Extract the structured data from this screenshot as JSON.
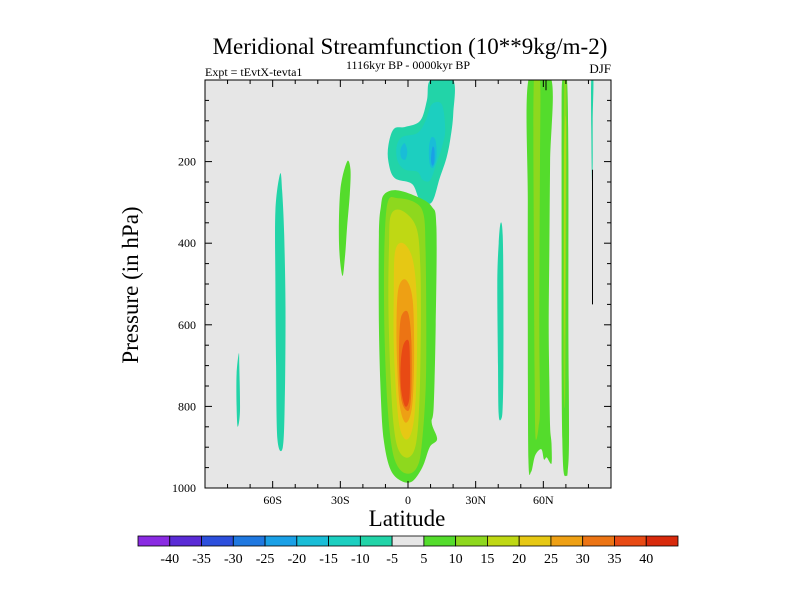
{
  "chart_data": {
    "type": "contour",
    "title": "Meridional Streamfunction (10**9kg/m-2)",
    "subtitle_left": "Expt = tEvtX-tevta1",
    "subtitle_center": "1116kyr BP - 0000kyr BP",
    "subtitle_right": "DJF",
    "xlabel": "Latitude",
    "ylabel": "Pressure (in hPa)",
    "xlim": [
      -90,
      90
    ],
    "ylim": [
      1000,
      0
    ],
    "x_ticks": [
      {
        "value": -60,
        "label": "60S"
      },
      {
        "value": -30,
        "label": "30S"
      },
      {
        "value": 0,
        "label": "0"
      },
      {
        "value": 30,
        "label": "30N"
      },
      {
        "value": 60,
        "label": "60N"
      }
    ],
    "y_ticks": [
      {
        "value": 200,
        "label": "200"
      },
      {
        "value": 400,
        "label": "400"
      },
      {
        "value": 600,
        "label": "600"
      },
      {
        "value": 800,
        "label": "800"
      },
      {
        "value": 1000,
        "label": "1000"
      }
    ],
    "background_color": "#e6e6e6",
    "colorbar": {
      "levels": [
        -40,
        -35,
        -30,
        -25,
        -20,
        -15,
        -10,
        -5,
        5,
        10,
        15,
        20,
        25,
        30,
        35,
        40
      ],
      "colors": [
        "#8a2be2",
        "#5a2bd6",
        "#2c4fdc",
        "#1f78e0",
        "#1aa0e6",
        "#19bdd7",
        "#1ccfc0",
        "#22d4a8",
        "#e6e6e6",
        "#54dc2c",
        "#8ed81e",
        "#bfd814",
        "#e6c814",
        "#eea014",
        "#ec7414",
        "#e84a14",
        "#d82a0c"
      ]
    },
    "regions": [
      {
        "name": "antarctic-negative-strip",
        "level": -5,
        "outline": [
          [
            -75,
            670
          ],
          [
            -76,
            720
          ],
          [
            -76,
            800
          ],
          [
            -75.5,
            850
          ],
          [
            -74.5,
            810
          ],
          [
            -74.8,
            700
          ]
        ]
      },
      {
        "name": "southern-negative-cell",
        "level": -5,
        "outline": [
          [
            -56.7,
            230
          ],
          [
            -58.8,
            320
          ],
          [
            -58.8,
            500
          ],
          [
            -58.5,
            700
          ],
          [
            -57.9,
            880
          ],
          [
            -55.5,
            900
          ],
          [
            -54.6,
            780
          ],
          [
            -54.3,
            560
          ],
          [
            -54.9,
            380
          ],
          [
            -55.8,
            270
          ]
        ]
      },
      {
        "name": "southern-positive-cell",
        "level": 5,
        "outline": [
          [
            -27,
            200
          ],
          [
            -30,
            270
          ],
          [
            -30.6,
            400
          ],
          [
            -29.1,
            480
          ],
          [
            -27.9,
            430
          ],
          [
            -27,
            360
          ],
          [
            -25.8,
            280
          ],
          [
            -25.5,
            220
          ]
        ]
      },
      {
        "name": "upper-negative-cell-outer",
        "level": -5,
        "outline": [
          [
            10,
            0
          ],
          [
            20,
            0
          ],
          [
            20.1,
            80
          ],
          [
            18.9,
            140
          ],
          [
            17.1,
            190
          ],
          [
            14.1,
            240
          ],
          [
            10.5,
            300
          ],
          [
            5.4,
            295
          ],
          [
            1.8,
            255
          ],
          [
            -6,
            240
          ],
          [
            -8.7,
            200
          ],
          [
            -8.7,
            160
          ],
          [
            -6.3,
            120
          ],
          [
            -1.2,
            115
          ],
          [
            5.4,
            100
          ],
          [
            8.4,
            50
          ]
        ]
      },
      {
        "name": "upper-negative-cell-mid",
        "level": -10,
        "outline": [
          [
            10.5,
            60
          ],
          [
            15,
            60
          ],
          [
            16.5,
            120
          ],
          [
            15.3,
            160
          ],
          [
            12.9,
            200
          ],
          [
            9.9,
            245
          ],
          [
            6.6,
            245
          ],
          [
            4.2,
            225
          ],
          [
            -1.2,
            220
          ],
          [
            -4.5,
            200
          ],
          [
            -5.1,
            165
          ],
          [
            -2.7,
            140
          ],
          [
            4.2,
            130
          ],
          [
            7.8,
            100
          ]
        ]
      },
      {
        "name": "upper-negative-cell-core",
        "level": -15,
        "outline": [
          [
            -3.3,
            170
          ],
          [
            -1.5,
            155
          ],
          [
            -0.3,
            175
          ],
          [
            -1.2,
            195
          ],
          [
            -3,
            190
          ]
        ]
      },
      {
        "name": "upper-negative-cell-core-2",
        "level": -15,
        "outline": [
          [
            10.5,
            140
          ],
          [
            12.3,
            150
          ],
          [
            12.6,
            190
          ],
          [
            11.1,
            215
          ],
          [
            9.6,
            205
          ],
          [
            9.3,
            165
          ]
        ]
      },
      {
        "name": "upper-negative-cell-core-3",
        "level": -20,
        "outline": [
          [
            10.8,
            165
          ],
          [
            11.7,
            170
          ],
          [
            11.7,
            200
          ],
          [
            10.8,
            210
          ],
          [
            10.2,
            195
          ]
        ]
      },
      {
        "name": "hadley-positive-cell-5",
        "level": 5,
        "outline": [
          [
            -10.5,
            280
          ],
          [
            -5.1,
            270
          ],
          [
            3.6,
            285
          ],
          [
            10.5,
            310
          ],
          [
            12.6,
            360
          ],
          [
            12.3,
            600
          ],
          [
            11.4,
            800
          ],
          [
            10.5,
            840
          ],
          [
            12.9,
            880
          ],
          [
            9.6,
            900
          ],
          [
            6.3,
            950
          ],
          [
            1.5,
            985
          ],
          [
            -3.9,
            980
          ],
          [
            -8.1,
            950
          ],
          [
            -10.8,
            880
          ],
          [
            -12,
            780
          ],
          [
            -12.9,
            600
          ],
          [
            -12.9,
            380
          ],
          [
            -12,
            310
          ]
        ]
      },
      {
        "name": "hadley-positive-cell-10",
        "level": 10,
        "outline": [
          [
            -9,
            300
          ],
          [
            -4.5,
            290
          ],
          [
            3,
            300
          ],
          [
            6.9,
            330
          ],
          [
            7.8,
            420
          ],
          [
            8.1,
            600
          ],
          [
            7.8,
            760
          ],
          [
            6,
            900
          ],
          [
            3.9,
            950
          ],
          [
            0,
            965
          ],
          [
            -4.2,
            950
          ],
          [
            -7.2,
            900
          ],
          [
            -9.3,
            780
          ],
          [
            -10.5,
            600
          ],
          [
            -10.5,
            420
          ]
        ]
      },
      {
        "name": "hadley-positive-cell-15",
        "level": 15,
        "outline": [
          [
            -7.5,
            330
          ],
          [
            -2.7,
            320
          ],
          [
            3.6,
            360
          ],
          [
            5.4,
            450
          ],
          [
            5.7,
            600
          ],
          [
            5.1,
            780
          ],
          [
            3.6,
            890
          ],
          [
            0.3,
            925
          ],
          [
            -3.9,
            910
          ],
          [
            -6.3,
            850
          ],
          [
            -7.8,
            720
          ],
          [
            -8.7,
            550
          ],
          [
            -8.4,
            400
          ]
        ]
      },
      {
        "name": "hadley-positive-cell-20",
        "level": 20,
        "outline": [
          [
            -5.7,
            420
          ],
          [
            -2.1,
            400
          ],
          [
            2.1,
            440
          ],
          [
            3.9,
            540
          ],
          [
            3.9,
            700
          ],
          [
            2.7,
            830
          ],
          [
            0,
            880
          ],
          [
            -3.3,
            860
          ],
          [
            -5.1,
            780
          ],
          [
            -6.3,
            650
          ],
          [
            -6.3,
            520
          ]
        ]
      },
      {
        "name": "hadley-positive-cell-25",
        "level": 25,
        "outline": [
          [
            -4.2,
            510
          ],
          [
            -0.9,
            490
          ],
          [
            2.1,
            540
          ],
          [
            2.7,
            680
          ],
          [
            1.8,
            800
          ],
          [
            -0.9,
            840
          ],
          [
            -3.6,
            800
          ],
          [
            -4.8,
            700
          ],
          [
            -5.1,
            600
          ]
        ]
      },
      {
        "name": "hadley-positive-cell-30",
        "level": 30,
        "outline": [
          [
            -3,
            580
          ],
          [
            0,
            570
          ],
          [
            1.5,
            640
          ],
          [
            1.5,
            760
          ],
          [
            0.3,
            810
          ],
          [
            -2.7,
            790
          ],
          [
            -3.9,
            720
          ],
          [
            -3.9,
            640
          ]
        ]
      },
      {
        "name": "hadley-positive-cell-35",
        "level": 35,
        "outline": [
          [
            -2.1,
            650
          ],
          [
            0.3,
            640
          ],
          [
            0.9,
            700
          ],
          [
            0.6,
            780
          ],
          [
            -1.2,
            800
          ],
          [
            -3,
            760
          ],
          [
            -3.3,
            700
          ]
        ]
      },
      {
        "name": "northern-negative-cell",
        "level": -5,
        "outline": [
          [
            41.1,
            350
          ],
          [
            42,
            380
          ],
          [
            42.3,
            520
          ],
          [
            42.3,
            700
          ],
          [
            42,
            800
          ],
          [
            41.4,
            830
          ],
          [
            40.2,
            820
          ],
          [
            39.9,
            700
          ],
          [
            39.6,
            500
          ],
          [
            40.2,
            400
          ]
        ]
      },
      {
        "name": "midlat-positive-strip-outer",
        "level": 5,
        "outline": [
          [
            53.4,
            0
          ],
          [
            63.6,
            0
          ],
          [
            63,
            200
          ],
          [
            62.7,
            400
          ],
          [
            62.4,
            600
          ],
          [
            62.7,
            750
          ],
          [
            63,
            850
          ],
          [
            63.6,
            890
          ],
          [
            63.6,
            940
          ],
          [
            61.5,
            925
          ],
          [
            60.3,
            930
          ],
          [
            59.1,
            905
          ],
          [
            56.4,
            920
          ],
          [
            54.6,
            960
          ],
          [
            53.4,
            930
          ],
          [
            53.1,
            600
          ],
          [
            53.1,
            300
          ]
        ]
      },
      {
        "name": "midlat-positive-strip-inner",
        "level": 10,
        "outline": [
          [
            55.8,
            0
          ],
          [
            58.5,
            0
          ],
          [
            58.5,
            200
          ],
          [
            58.2,
            600
          ],
          [
            58.5,
            800
          ],
          [
            57.9,
            850
          ],
          [
            57,
            880
          ],
          [
            56.4,
            860
          ],
          [
            56.1,
            700
          ],
          [
            55.8,
            400
          ]
        ]
      },
      {
        "name": "polar-positive-strip",
        "level": 5,
        "outline": [
          [
            68.4,
            0
          ],
          [
            70.5,
            0
          ],
          [
            71.1,
            200
          ],
          [
            71.1,
            600
          ],
          [
            71.4,
            880
          ],
          [
            70.8,
            960
          ],
          [
            70.2,
            970
          ],
          [
            69,
            960
          ],
          [
            68.4,
            880
          ],
          [
            68.1,
            700
          ],
          [
            68.1,
            400
          ],
          [
            68.1,
            100
          ]
        ]
      },
      {
        "name": "polar-positive-strip-inner",
        "level": 10,
        "outline": [
          [
            69.3,
            0
          ],
          [
            70.2,
            0
          ],
          [
            70.2,
            300
          ],
          [
            69.9,
            600
          ],
          [
            69.6,
            800
          ],
          [
            69,
            700
          ],
          [
            69,
            300
          ]
        ]
      },
      {
        "name": "polar-positive-strip-core",
        "level": 15,
        "outline": [
          [
            69.6,
            100
          ],
          [
            69.9,
            100
          ],
          [
            69.9,
            200
          ],
          [
            69.6,
            500
          ],
          [
            69.3,
            650
          ],
          [
            69.3,
            500
          ],
          [
            69.3,
            200
          ]
        ]
      },
      {
        "name": "arctic-negative-strip",
        "level": -5,
        "outline": [
          [
            81.2,
            0
          ],
          [
            82.2,
            0
          ],
          [
            81.9,
            100
          ],
          [
            81.9,
            200
          ],
          [
            81.6,
            250
          ],
          [
            81.3,
            150
          ]
        ]
      }
    ],
    "contour_lines": [
      {
        "name": "arctic-zero-line",
        "points": [
          [
            81.8,
            220
          ],
          [
            81.8,
            550
          ]
        ]
      },
      {
        "name": "midlat-zero-line",
        "points": [
          [
            61.2,
            0
          ],
          [
            61.2,
            25
          ]
        ]
      }
    ]
  }
}
